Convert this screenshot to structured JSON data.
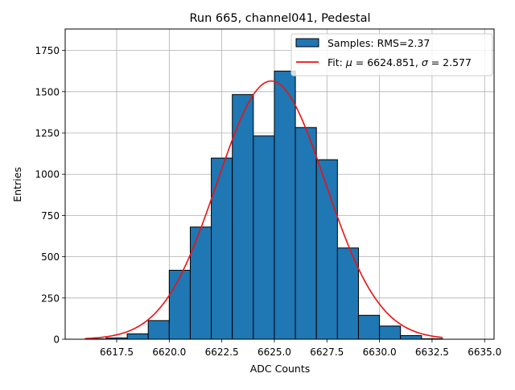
{
  "chart_data": {
    "type": "bar",
    "title": "Run 665, channel041, Pedestal",
    "xlabel": "ADC Counts",
    "ylabel": "Entries",
    "xlim": [
      6615.05,
      6635.45
    ],
    "ylim": [
      0,
      1880
    ],
    "xticks": [
      6617.5,
      6620.0,
      6622.5,
      6625.0,
      6627.5,
      6630.0,
      6632.5,
      6635.0
    ],
    "xtick_labels": [
      "6617.5",
      "6620.0",
      "6622.5",
      "6625.0",
      "6627.5",
      "6630.0",
      "6632.5",
      "6635.0"
    ],
    "yticks": [
      0,
      250,
      500,
      750,
      1000,
      1250,
      1500,
      1750
    ],
    "ytick_labels": [
      "0",
      "250",
      "500",
      "750",
      "1000",
      "1250",
      "1500",
      "1750"
    ],
    "grid": true,
    "legend_position": "top-right",
    "histogram": {
      "name": "Samples: RMS=2.37",
      "color": "#1f77b4",
      "edge_color": "#000000",
      "bins": [
        {
          "x0": 6616.0,
          "x1": 6617.0,
          "count": 2
        },
        {
          "x0": 6617.0,
          "x1": 6618.0,
          "count": 8
        },
        {
          "x0": 6618.0,
          "x1": 6619.0,
          "count": 33
        },
        {
          "x0": 6619.0,
          "x1": 6620.0,
          "count": 113
        },
        {
          "x0": 6620.0,
          "x1": 6621.0,
          "count": 418
        },
        {
          "x0": 6621.0,
          "x1": 6622.0,
          "count": 680
        },
        {
          "x0": 6622.0,
          "x1": 6623.0,
          "count": 1098
        },
        {
          "x0": 6623.0,
          "x1": 6624.0,
          "count": 1483
        },
        {
          "x0": 6624.0,
          "x1": 6625.0,
          "count": 1232
        },
        {
          "x0": 6625.0,
          "x1": 6626.0,
          "count": 1625
        },
        {
          "x0": 6626.0,
          "x1": 6627.0,
          "count": 1283
        },
        {
          "x0": 6627.0,
          "x1": 6628.0,
          "count": 1088
        },
        {
          "x0": 6628.0,
          "x1": 6629.0,
          "count": 553
        },
        {
          "x0": 6629.0,
          "x1": 6630.0,
          "count": 145
        },
        {
          "x0": 6630.0,
          "x1": 6631.0,
          "count": 80
        },
        {
          "x0": 6631.0,
          "x1": 6632.0,
          "count": 22
        },
        {
          "x0": 6632.0,
          "x1": 6633.0,
          "count": 3
        }
      ]
    },
    "fit": {
      "name_prefix": "Fit: ",
      "mu_symbol": "μ",
      "mu_text": " = 6624.851, ",
      "sigma_symbol": "σ",
      "sigma_text": " = 2.577",
      "color": "#ee1111",
      "mu": 6624.851,
      "sigma": 2.577,
      "amplitude": 1565,
      "x_range": [
        6616.0,
        6633.0
      ]
    }
  }
}
